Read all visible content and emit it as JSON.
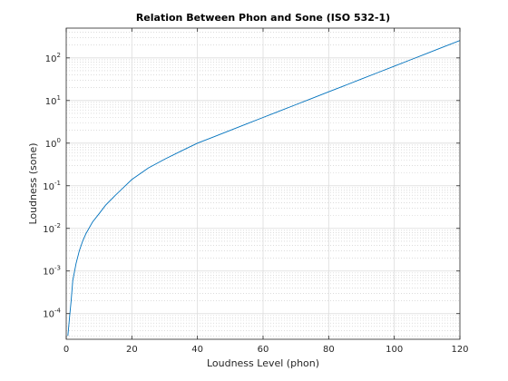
{
  "chart_data": {
    "type": "line",
    "title": "Relation Between Phon and Sone (ISO 532-1)",
    "xlabel": "Loudness Level (phon)",
    "ylabel": "Loudness (sone)",
    "xlim": [
      0,
      120
    ],
    "ylim": [
      2.5e-05,
      500
    ],
    "yscale": "log",
    "grid": true,
    "minor_grid": true,
    "x_ticks": [
      0,
      20,
      40,
      60,
      80,
      100,
      120
    ],
    "x_tick_labels": [
      "0",
      "20",
      "40",
      "60",
      "80",
      "100",
      "120"
    ],
    "y_ticks": [
      0.0001,
      0.001,
      0.01,
      0.1,
      1,
      10,
      100
    ],
    "y_tick_labels": [
      {
        "base": "10",
        "exp": "-4"
      },
      {
        "base": "10",
        "exp": "-3"
      },
      {
        "base": "10",
        "exp": "-2"
      },
      {
        "base": "10",
        "exp": "-1"
      },
      {
        "base": "10",
        "exp": "0"
      },
      {
        "base": "10",
        "exp": "1"
      },
      {
        "base": "10",
        "exp": "2"
      }
    ],
    "series": [
      {
        "color": "#0072bd",
        "x": [
          0.5,
          1,
          1.5,
          2,
          3,
          4,
          5,
          6,
          8,
          10,
          12,
          15,
          18,
          20,
          25,
          30,
          35,
          40,
          45,
          50,
          55,
          60,
          65,
          70,
          75,
          80,
          85,
          90,
          95,
          100,
          105,
          110,
          115,
          120
        ],
        "y": [
          3e-05,
          8e-05,
          0.0002,
          0.0006,
          0.0015,
          0.003,
          0.005,
          0.0075,
          0.014,
          0.022,
          0.035,
          0.06,
          0.1,
          0.14,
          0.26,
          0.42,
          0.65,
          1.0,
          1.41,
          2.0,
          2.83,
          4.0,
          5.66,
          8.0,
          11.3,
          16.0,
          22.6,
          32.0,
          45.3,
          64.0,
          90.5,
          128,
          181,
          256
        ]
      }
    ]
  }
}
